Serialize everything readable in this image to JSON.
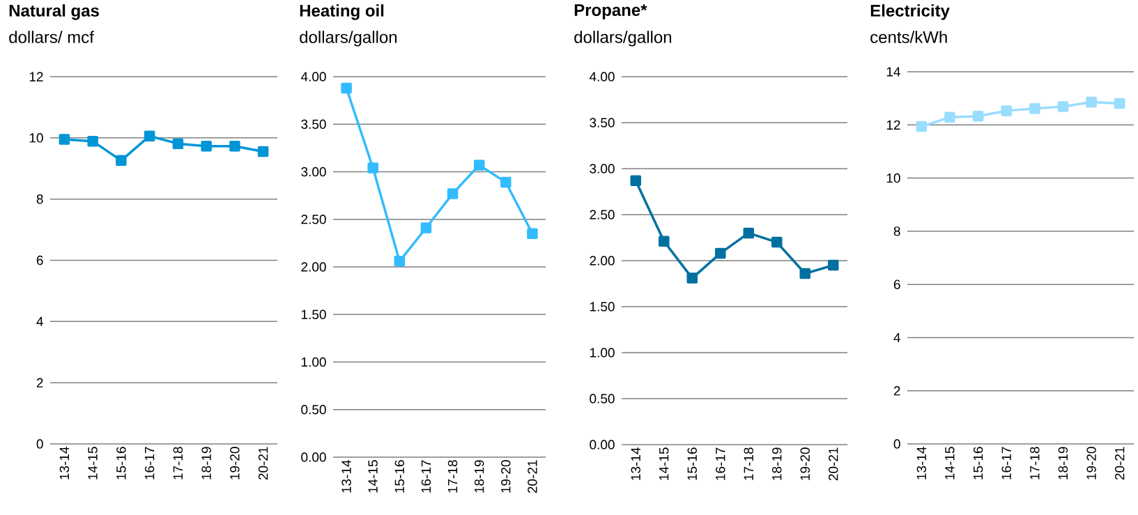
{
  "chart_data": [
    {
      "type": "line",
      "title": "Natural gas",
      "subtitle": "dollars/ mcf",
      "categories": [
        "13-14",
        "14-15",
        "15-16",
        "16-17",
        "17-18",
        "18-19",
        "19-20",
        "20-21"
      ],
      "series": [
        {
          "color": "#0096d6",
          "values": [
            9.95,
            9.89,
            9.26,
            10.06,
            9.81,
            9.73,
            9.73,
            9.55
          ]
        }
      ],
      "ylim": [
        0,
        12
      ],
      "yticks": [
        0,
        2,
        4,
        6,
        8,
        10,
        12
      ],
      "grid": "y",
      "marker": "square"
    },
    {
      "type": "line",
      "title": "Heating oil",
      "subtitle": "dollars/gallon",
      "categories": [
        "13-14",
        "14-15",
        "15-16",
        "16-17",
        "17-18",
        "18-19",
        "19-20",
        "20-21"
      ],
      "series": [
        {
          "color": "#33bbff",
          "values": [
            3.88,
            3.04,
            2.06,
            2.41,
            2.77,
            3.07,
            2.89,
            2.35
          ]
        }
      ],
      "ylim": [
        0,
        4
      ],
      "yticks": [
        {
          "value": 0,
          "label": "0.00"
        },
        {
          "value": 0.5,
          "label": "0.50"
        },
        {
          "value": 1,
          "label": "1.00"
        },
        {
          "value": 1.5,
          "label": "1.50"
        },
        {
          "value": 2,
          "label": "2.00"
        },
        {
          "value": 2.5,
          "label": "2.50"
        },
        {
          "value": 3,
          "label": "3.00"
        },
        {
          "value": 3.5,
          "label": "3.50"
        },
        {
          "value": 4,
          "label": "4.00"
        }
      ],
      "grid": "y",
      "marker": "square"
    },
    {
      "type": "line",
      "title": "Propane*",
      "subtitle": "dollars/gallon",
      "categories": [
        "13-14",
        "14-15",
        "15-16",
        "16-17",
        "17-18",
        "18-19",
        "19-20",
        "20-21"
      ],
      "series": [
        {
          "color": "#0070a0",
          "values": [
            2.87,
            2.21,
            1.81,
            2.08,
            2.3,
            2.2,
            1.86,
            1.95
          ]
        }
      ],
      "ylim": [
        0,
        4
      ],
      "yticks": [
        {
          "value": 0,
          "label": "0.00"
        },
        {
          "value": 0.5,
          "label": "0.50"
        },
        {
          "value": 1,
          "label": "1.00"
        },
        {
          "value": 1.5,
          "label": "1.50"
        },
        {
          "value": 2,
          "label": "2.00"
        },
        {
          "value": 2.5,
          "label": "2.50"
        },
        {
          "value": 3,
          "label": "3.00"
        },
        {
          "value": 3.5,
          "label": "3.50"
        },
        {
          "value": 4,
          "label": "4.00"
        }
      ],
      "grid": "y",
      "marker": "square"
    },
    {
      "type": "line",
      "title": "Electricity",
      "subtitle": "cents/kWh",
      "categories": [
        "13-14",
        "14-15",
        "15-16",
        "16-17",
        "17-18",
        "18-19",
        "19-20",
        "20-21"
      ],
      "series": [
        {
          "color": "#99ddff",
          "values": [
            11.94,
            12.29,
            12.33,
            12.53,
            12.62,
            12.69,
            12.86,
            12.81
          ]
        }
      ],
      "ylim": [
        0,
        14
      ],
      "yticks": [
        0,
        2,
        4,
        6,
        8,
        10,
        12,
        14
      ],
      "grid": "y",
      "marker": "square"
    }
  ]
}
